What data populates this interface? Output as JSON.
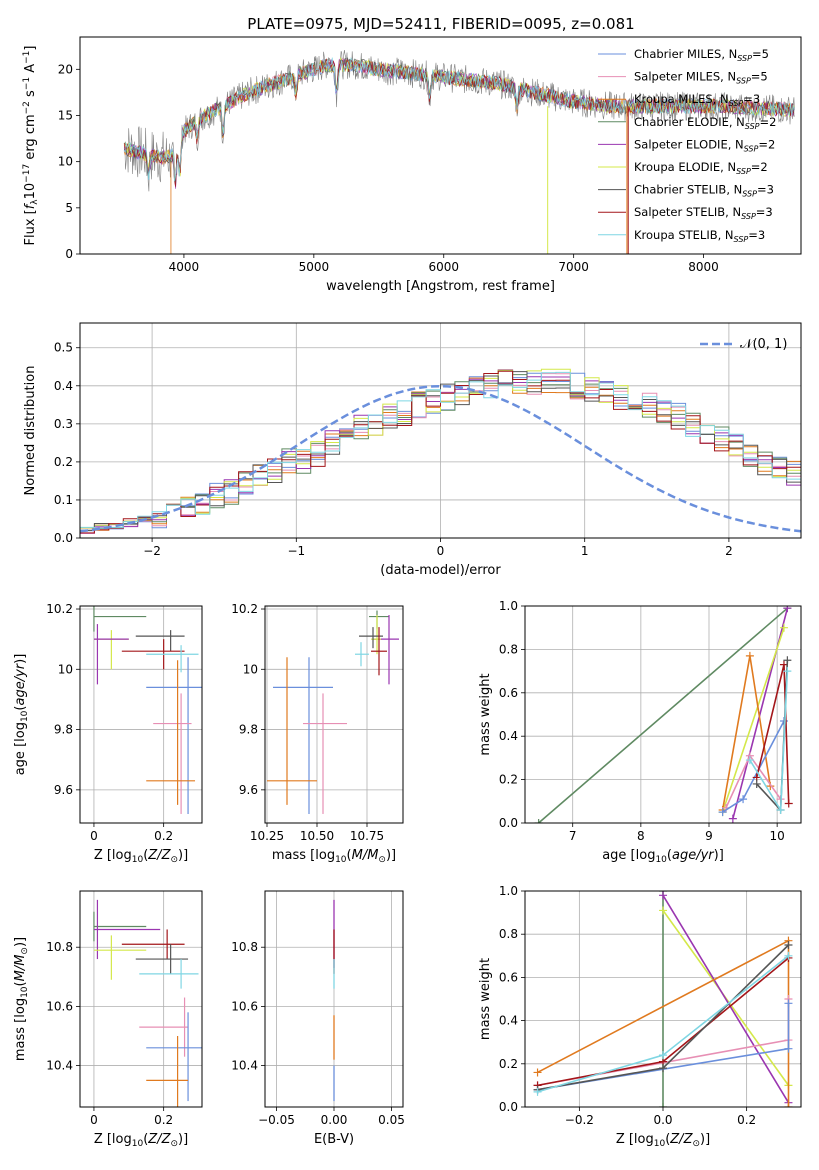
{
  "title": "PLATE=0975, MJD=52411, FIBERID=0095, z=0.081",
  "colors": {
    "chabrier_miles": "#6a8fdc",
    "salpeter_miles": "#e78fb4",
    "kroupa_miles": "#e07a1f",
    "chabrier_elodie": "#5f8a62",
    "salpeter_elodie": "#9a36b0",
    "kroupa_elodie": "#d4e84a",
    "chabrier_stelib": "#555555",
    "salpeter_stelib": "#a3161a",
    "kroupa_stelib": "#7fd6e3",
    "data_gray": "#808080",
    "gauss": "#6a8fdc"
  },
  "chart_data": [
    {
      "type": "line",
      "panel": "spectrum",
      "xlabel": "wavelength [Angstrom, rest frame]",
      "ylabel": "Flux [f_λ 10^-17 erg cm^-2 s^-1 A^-1]",
      "xlim": [
        3200,
        8750
      ],
      "ylim": [
        0,
        23.5
      ],
      "xticks": [
        4000,
        5000,
        6000,
        7000,
        8000
      ],
      "yticks": [
        0,
        5,
        10,
        15,
        20
      ],
      "legend_position": "top-right",
      "legend": [
        {
          "key": "chabrier_miles",
          "label": "Chabrier MILES, N",
          "sub": "SSP",
          "tail": "=5"
        },
        {
          "key": "salpeter_miles",
          "label": "Salpeter MILES, N",
          "sub": "SSP",
          "tail": "=5"
        },
        {
          "key": "kroupa_miles",
          "label": "Kroupa MILES, N",
          "sub": "SSP",
          "tail": "=3"
        },
        {
          "key": "chabrier_elodie",
          "label": "Chabrier ELODIE, N",
          "sub": "SSP",
          "tail": "=2"
        },
        {
          "key": "salpeter_elodie",
          "label": "Salpeter ELODIE, N",
          "sub": "SSP",
          "tail": "=2"
        },
        {
          "key": "kroupa_elodie",
          "label": "Kroupa ELODIE, N",
          "sub": "SSP",
          "tail": "=2"
        },
        {
          "key": "chabrier_stelib",
          "label": "Chabrier STELIB, N",
          "sub": "SSP",
          "tail": "=3"
        },
        {
          "key": "salpeter_stelib",
          "label": "Salpeter STELIB, N",
          "sub": "SSP",
          "tail": "=3"
        },
        {
          "key": "kroupa_stelib",
          "label": "Kroupa STELIB, N",
          "sub": "SSP",
          "tail": "=3"
        }
      ],
      "continuum": [
        [
          3540,
          11.5
        ],
        [
          3650,
          11
        ],
        [
          3800,
          10.5
        ],
        [
          3900,
          10.5
        ],
        [
          3980,
          13
        ],
        [
          4100,
          14.5
        ],
        [
          4300,
          16
        ],
        [
          4500,
          17.5
        ],
        [
          4700,
          18.5
        ],
        [
          4900,
          19.5
        ],
        [
          5100,
          20.5
        ],
        [
          5300,
          20.5
        ],
        [
          5500,
          20
        ],
        [
          5800,
          19.5
        ],
        [
          6100,
          19
        ],
        [
          6400,
          18.5
        ],
        [
          6700,
          17.5
        ],
        [
          7000,
          16.5
        ],
        [
          7300,
          16
        ],
        [
          7500,
          16
        ],
        [
          7800,
          16
        ],
        [
          8100,
          16
        ],
        [
          8400,
          15.8
        ],
        [
          8700,
          15.6
        ]
      ]
    },
    {
      "type": "line",
      "panel": "residual-histogram",
      "xlabel": "(data-model)/error",
      "ylabel": "Normed distribution",
      "xlim": [
        -2.5,
        2.5
      ],
      "ylim": [
        0,
        0.565
      ],
      "xticks": [
        -2,
        -1,
        0,
        1,
        2
      ],
      "yticks": [
        0.0,
        0.1,
        0.2,
        0.3,
        0.4,
        0.5
      ],
      "grid": true,
      "legend_position": "top-right",
      "gauss_label": "𝒩(0, 1)",
      "bin_width": 0.1,
      "bins_start": -2.5,
      "hist_base": [
        0.02,
        0.03,
        0.03,
        0.04,
        0.05,
        0.06,
        0.07,
        0.08,
        0.09,
        0.11,
        0.12,
        0.14,
        0.16,
        0.18,
        0.2,
        0.2,
        0.22,
        0.25,
        0.27,
        0.29,
        0.3,
        0.32,
        0.33,
        0.35,
        0.36,
        0.37,
        0.38,
        0.39,
        0.4,
        0.41,
        0.41,
        0.41,
        0.41,
        0.41,
        0.4,
        0.39,
        0.38,
        0.37,
        0.36,
        0.35,
        0.33,
        0.32,
        0.3,
        0.28,
        0.26,
        0.24,
        0.22,
        0.2,
        0.19,
        0.17,
        0.15,
        0.14,
        0.12,
        0.11,
        0.1,
        0.08,
        0.07,
        0.06,
        0.05,
        0.04,
        0.04,
        0.03,
        0.03,
        0.02,
        0.02,
        0.01,
        0.01,
        0.01,
        0.01,
        0.01
      ]
    },
    {
      "type": "scatter",
      "panel": "age-vs-Z",
      "xlabel": "Z [log10(Z/Z⊙)]",
      "ylabel": "age [log10(age/yr)]",
      "xlim": [
        -0.04,
        0.31
      ],
      "ylim": [
        9.49,
        10.21
      ],
      "xticks": [
        0.0,
        0.2
      ],
      "yticks": [
        9.6,
        9.8,
        10.0,
        10.2
      ],
      "grid": true,
      "points": [
        {
          "key": "chabrier_elodie",
          "x": 0.0,
          "y": 10.175,
          "xerr": [
            0.0,
            0.15
          ],
          "yerr": [
            0.05,
            0.05
          ]
        },
        {
          "key": "kroupa_elodie",
          "x": 0.05,
          "y": 10.1,
          "xerr": [
            0.05,
            0.05
          ],
          "yerr": [
            0.1,
            0.03
          ]
        },
        {
          "key": "salpeter_elodie",
          "x": 0.01,
          "y": 10.1,
          "xerr": [
            0.01,
            0.09
          ],
          "yerr": [
            0.15,
            0.05
          ]
        },
        {
          "key": "chabrier_stelib",
          "x": 0.22,
          "y": 10.11,
          "xerr": [
            0.1,
            0.04
          ],
          "yerr": [
            0.05,
            0.02
          ]
        },
        {
          "key": "salpeter_stelib",
          "x": 0.2,
          "y": 10.06,
          "xerr": [
            0.12,
            0.06
          ],
          "yerr": [
            0.06,
            0.04
          ]
        },
        {
          "key": "kroupa_stelib",
          "x": 0.25,
          "y": 10.05,
          "xerr": [
            0.1,
            0.05
          ],
          "yerr": [
            0.06,
            0.03
          ]
        },
        {
          "key": "chabrier_miles",
          "x": 0.27,
          "y": 9.94,
          "xerr": [
            0.12,
            0.05
          ],
          "yerr": [
            0.42,
            0.1
          ]
        },
        {
          "key": "salpeter_miles",
          "x": 0.25,
          "y": 9.82,
          "xerr": [
            0.08,
            0.03
          ],
          "yerr": [
            0.3,
            0.1
          ]
        },
        {
          "key": "kroupa_miles",
          "x": 0.24,
          "y": 9.63,
          "xerr": [
            0.09,
            0.05
          ],
          "yerr": [
            0.08,
            0.4
          ]
        }
      ]
    },
    {
      "type": "scatter",
      "panel": "age-vs-mass",
      "xlabel": "mass [log10(M/M⊙)]",
      "ylabel": "",
      "xlim": [
        10.24,
        10.93
      ],
      "ylim": [
        9.49,
        10.21
      ],
      "xticks": [
        10.25,
        10.5,
        10.75
      ],
      "xticklabels": [
        "10.25",
        "10.50",
        "10.75"
      ],
      "yticks": [
        9.6,
        9.8,
        10.0,
        10.2
      ],
      "grid": true,
      "points": [
        {
          "key": "chabrier_elodie",
          "x": 10.8,
          "y": 10.175,
          "xerr": [
            0.04,
            0.06
          ],
          "yerr": [
            0.04,
            0.02
          ]
        },
        {
          "key": "salpeter_elodie",
          "x": 10.86,
          "y": 10.1,
          "xerr": [
            0.08,
            0.05
          ],
          "yerr": [
            0.15,
            0.08
          ]
        },
        {
          "key": "kroupa_elodie",
          "x": 10.8,
          "y": 10.1,
          "xerr": [
            0.03,
            0.02
          ],
          "yerr": [
            0.05,
            0.08
          ]
        },
        {
          "key": "chabrier_stelib",
          "x": 10.78,
          "y": 10.11,
          "xerr": [
            0.07,
            0.05
          ],
          "yerr": [
            0.04,
            0.03
          ]
        },
        {
          "key": "salpeter_stelib",
          "x": 10.81,
          "y": 10.06,
          "xerr": [
            0.04,
            0.04
          ],
          "yerr": [
            0.08,
            0.08
          ]
        },
        {
          "key": "kroupa_stelib",
          "x": 10.72,
          "y": 10.05,
          "xerr": [
            0.03,
            0.04
          ],
          "yerr": [
            0.04,
            0.04
          ]
        },
        {
          "key": "chabrier_miles",
          "x": 10.46,
          "y": 9.94,
          "xerr": [
            0.18,
            0.12
          ],
          "yerr": [
            0.42,
            0.1
          ]
        },
        {
          "key": "salpeter_miles",
          "x": 10.53,
          "y": 9.82,
          "xerr": [
            0.1,
            0.12
          ],
          "yerr": [
            0.3,
            0.1
          ]
        },
        {
          "key": "kroupa_miles",
          "x": 10.35,
          "y": 9.63,
          "xerr": [
            0.1,
            0.15
          ],
          "yerr": [
            0.08,
            0.41
          ]
        }
      ]
    },
    {
      "type": "line",
      "panel": "mass-weight-vs-age",
      "xlabel": "age [log10(age/yr)]",
      "ylabel": "mass weight",
      "xlim": [
        6.3,
        10.35
      ],
      "ylim": [
        0,
        1.0
      ],
      "xticks": [
        7,
        8,
        9,
        10
      ],
      "yticks": [
        0.0,
        0.2,
        0.4,
        0.6,
        0.8,
        1.0
      ],
      "grid": true,
      "series": [
        {
          "key": "chabrier_elodie",
          "points": [
            [
              6.5,
              0.0
            ],
            [
              10.15,
              0.99
            ]
          ]
        },
        {
          "key": "salpeter_elodie",
          "points": [
            [
              9.35,
              0.02
            ],
            [
              10.15,
              0.99
            ]
          ]
        },
        {
          "key": "kroupa_elodie",
          "points": [
            [
              9.2,
              0.05
            ],
            [
              10.1,
              0.9
            ]
          ]
        },
        {
          "key": "kroupa_miles",
          "points": [
            [
              9.2,
              0.06
            ],
            [
              9.6,
              0.77
            ],
            [
              9.9,
              0.17
            ]
          ]
        },
        {
          "key": "salpeter_miles",
          "points": [
            [
              9.25,
              0.07
            ],
            [
              9.6,
              0.31
            ],
            [
              10.05,
              0.11
            ]
          ]
        },
        {
          "key": "chabrier_miles",
          "points": [
            [
              9.2,
              0.05
            ],
            [
              9.5,
              0.11
            ],
            [
              10.1,
              0.47
            ]
          ]
        },
        {
          "key": "salpeter_stelib",
          "points": [
            [
              9.7,
              0.21
            ],
            [
              10.1,
              0.73
            ],
            [
              10.17,
              0.09
            ]
          ]
        },
        {
          "key": "chabrier_stelib",
          "points": [
            [
              9.7,
              0.18
            ],
            [
              10.05,
              0.06
            ],
            [
              10.15,
              0.75
            ]
          ]
        },
        {
          "key": "kroupa_stelib",
          "points": [
            [
              9.6,
              0.29
            ],
            [
              10.05,
              0.06
            ],
            [
              10.15,
              0.7
            ]
          ]
        }
      ]
    },
    {
      "type": "scatter",
      "panel": "mass-vs-Z",
      "xlabel": "Z [log10(Z/Z⊙)]",
      "ylabel": "mass [log10(M/M⊙)]",
      "xlim": [
        -0.04,
        0.31
      ],
      "ylim": [
        10.26,
        10.99
      ],
      "xticks": [
        0.0,
        0.2
      ],
      "yticks": [
        10.4,
        10.6,
        10.8
      ],
      "grid": true,
      "points": [
        {
          "key": "chabrier_elodie",
          "x": 0.0,
          "y": 10.87,
          "xerr": [
            0.0,
            0.15
          ],
          "yerr": [
            0.05,
            0.05
          ]
        },
        {
          "key": "salpeter_elodie",
          "x": 0.01,
          "y": 10.86,
          "xerr": [
            0.01,
            0.18
          ],
          "yerr": [
            0.1,
            0.1
          ]
        },
        {
          "key": "kroupa_elodie",
          "x": 0.05,
          "y": 10.79,
          "xerr": [
            0.05,
            0.1
          ],
          "yerr": [
            0.1,
            0.05
          ]
        },
        {
          "key": "salpeter_stelib",
          "x": 0.21,
          "y": 10.81,
          "xerr": [
            0.13,
            0.05
          ],
          "yerr": [
            0.05,
            0.05
          ]
        },
        {
          "key": "chabrier_stelib",
          "x": 0.22,
          "y": 10.76,
          "xerr": [
            0.1,
            0.05
          ],
          "yerr": [
            0.05,
            0.05
          ]
        },
        {
          "key": "kroupa_stelib",
          "x": 0.25,
          "y": 10.71,
          "xerr": [
            0.12,
            0.05
          ],
          "yerr": [
            0.05,
            0.05
          ]
        },
        {
          "key": "salpeter_miles",
          "x": 0.26,
          "y": 10.53,
          "xerr": [
            0.13,
            0.01
          ],
          "yerr": [
            0.1,
            0.1
          ]
        },
        {
          "key": "chabrier_miles",
          "x": 0.27,
          "y": 10.46,
          "xerr": [
            0.12,
            0.05
          ],
          "yerr": [
            0.18,
            0.12
          ]
        },
        {
          "key": "kroupa_miles",
          "x": 0.24,
          "y": 10.35,
          "xerr": [
            0.09,
            0.03
          ],
          "yerr": [
            0.1,
            0.15
          ]
        }
      ]
    },
    {
      "type": "scatter",
      "panel": "mass-vs-EBV",
      "xlabel": "E(B-V)",
      "ylabel": "",
      "xlim": [
        -0.06,
        0.06
      ],
      "ylim": [
        10.26,
        10.99
      ],
      "xticks": [
        -0.05,
        0.0,
        0.05
      ],
      "xticklabels": [
        "−0.05",
        "0.00",
        "0.05"
      ],
      "yticks": [
        10.4,
        10.6,
        10.8
      ],
      "grid": true,
      "bars": [
        {
          "key": "salpeter_elodie",
          "y": [
            10.73,
            10.96
          ]
        },
        {
          "key": "salpeter_stelib",
          "y": [
            10.71,
            10.86
          ]
        },
        {
          "key": "kroupa_stelib",
          "y": [
            10.66,
            10.76
          ]
        },
        {
          "key": "kroupa_miles",
          "y": [
            10.42,
            10.57
          ]
        },
        {
          "key": "chabrier_miles",
          "y": [
            10.28,
            10.4
          ]
        }
      ]
    },
    {
      "type": "line",
      "panel": "mass-weight-vs-Z",
      "xlabel": "Z [log10(Z/Z⊙)]",
      "ylabel": "mass weight",
      "xlim": [
        -0.33,
        0.33
      ],
      "ylim": [
        0,
        1.0
      ],
      "xticks": [
        -0.2,
        0.0,
        0.2
      ],
      "xticklabels": [
        "−0.2",
        "0.0",
        "0.2"
      ],
      "yticks": [
        0.0,
        0.2,
        0.4,
        0.6,
        0.8,
        1.0
      ],
      "grid": true,
      "series": [
        {
          "key": "chabrier_elodie",
          "points": [
            [
              0.0,
              0.0
            ],
            [
              0.0,
              1.0
            ]
          ]
        },
        {
          "key": "kroupa_elodie",
          "points": [
            [
              0.0,
              0.91
            ],
            [
              0.3,
              0.1
            ]
          ]
        },
        {
          "key": "salpeter_elodie",
          "points": [
            [
              0.0,
              0.98
            ],
            [
              0.3,
              0.02
            ]
          ]
        },
        {
          "key": "kroupa_miles",
          "points": [
            [
              -0.3,
              0.16
            ],
            [
              0.3,
              0.77
            ],
            [
              0.3,
              0.0
            ]
          ]
        },
        {
          "key": "salpeter_miles",
          "points": [
            [
              -0.3,
              0.1
            ],
            [
              0.3,
              0.31
            ],
            [
              0.3,
              0.5
            ]
          ]
        },
        {
          "key": "chabrier_miles",
          "points": [
            [
              -0.3,
              0.08
            ],
            [
              0.3,
              0.27
            ],
            [
              0.3,
              0.48
            ]
          ]
        },
        {
          "key": "salpeter_stelib",
          "points": [
            [
              -0.3,
              0.1
            ],
            [
              0.0,
              0.21
            ],
            [
              0.3,
              0.69
            ]
          ]
        },
        {
          "key": "chabrier_stelib",
          "points": [
            [
              -0.3,
              0.08
            ],
            [
              0.0,
              0.18
            ],
            [
              0.3,
              0.75
            ]
          ]
        },
        {
          "key": "kroupa_stelib",
          "points": [
            [
              -0.3,
              0.07
            ],
            [
              0.0,
              0.24
            ],
            [
              0.3,
              0.7
            ]
          ]
        }
      ]
    }
  ]
}
